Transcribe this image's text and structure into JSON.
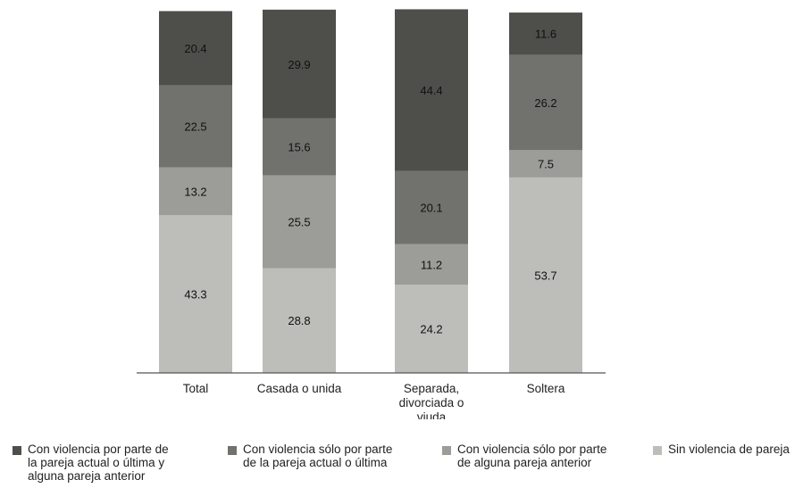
{
  "chart_data": {
    "type": "bar",
    "stacked": true,
    "title": "",
    "xlabel": "",
    "ylabel": "",
    "ylim": [
      0,
      100
    ],
    "grid": false,
    "legend_position": "bottom",
    "categories": [
      "Total",
      "Casada o unida",
      "Separada,\ndivorciada o\nviuda",
      "Soltera"
    ],
    "series": [
      {
        "name": "Sin violencia de pareja",
        "color": "#bdbdba",
        "values": [
          43.3,
          28.8,
          24.2,
          53.7
        ]
      },
      {
        "name": "Con violencia sólo por parte\nde alguna pareja anterior",
        "color": "#9c9c98",
        "values": [
          13.2,
          25.5,
          11.2,
          7.5
        ]
      },
      {
        "name": "Con violencia sólo por parte\nde la pareja actual o última",
        "color": "#71726d",
        "values": [
          22.5,
          15.6,
          20.1,
          26.2
        ]
      },
      {
        "name": "Con violencia por parte de\nla pareja actual o última y\nalguna pareja anterior",
        "color": "#4e4f4b",
        "values": [
          20.4,
          29.9,
          44.4,
          11.6
        ]
      }
    ],
    "legend_order": [
      3,
      2,
      1,
      0
    ]
  }
}
